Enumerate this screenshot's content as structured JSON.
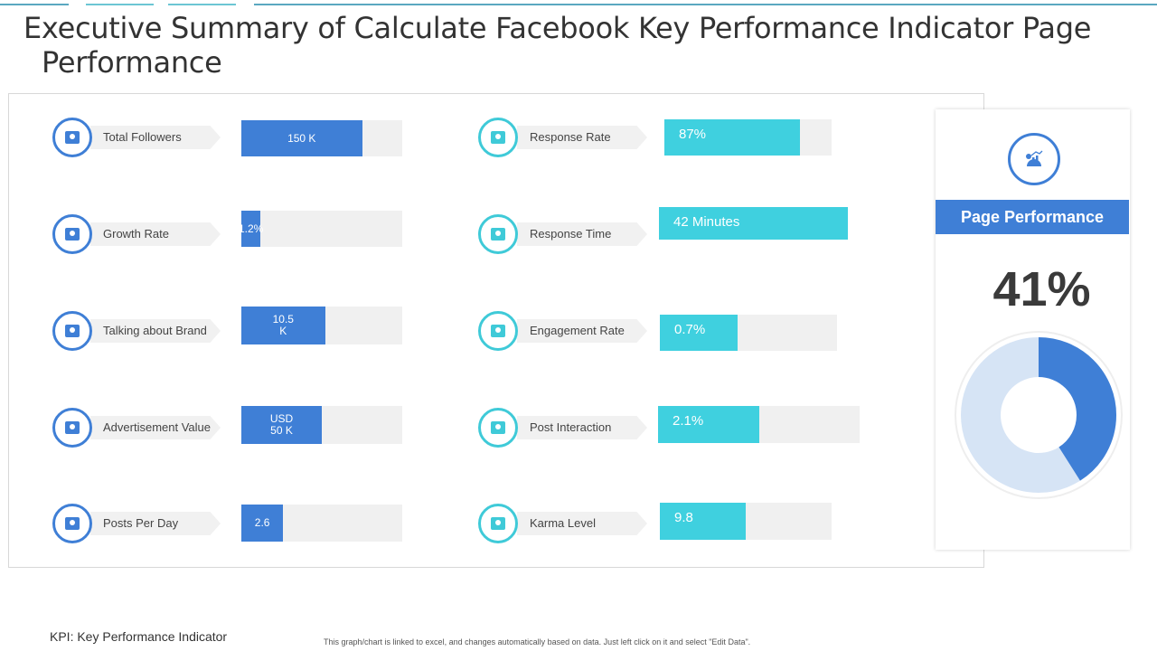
{
  "title_line1": "Executive Summary of Calculate Facebook Key Performance Indicator Page",
  "title_line2": "Performance",
  "left_metrics": [
    {
      "label": "Total Followers",
      "value": "150 K",
      "fill": 0.75,
      "icon": "followers-icon"
    },
    {
      "label": "Growth Rate",
      "value": "1.2%",
      "fill": 0.12,
      "icon": "growth-chart-icon"
    },
    {
      "label": "Talking about Brand",
      "value": "10.5\nK",
      "fill": 0.52,
      "icon": "people-chat-icon"
    },
    {
      "label": "Advertisement Value",
      "value": "USD\n50 K",
      "fill": 0.5,
      "icon": "advertisement-icon"
    },
    {
      "label": "Posts Per Day",
      "value": "2.6",
      "fill": 0.26,
      "icon": "calendar-posts-icon"
    }
  ],
  "right_metrics": [
    {
      "label": "Response Rate",
      "value": "87%",
      "fill": 0.81,
      "icon": "response-rate-icon"
    },
    {
      "label": "Response Time",
      "value": "42 Minutes",
      "fill": 1.0,
      "icon": "clock-icon"
    },
    {
      "label": "Engagement Rate",
      "value": "0.7%",
      "fill": 0.44,
      "icon": "engagement-user-icon"
    },
    {
      "label": "Post Interaction",
      "value": "2.1%",
      "fill": 0.5,
      "icon": "interaction-icon"
    },
    {
      "label": "Karma Level",
      "value": "9.8",
      "fill": 0.5,
      "icon": "karma-icon"
    }
  ],
  "panel": {
    "title": "Page Performance",
    "value": "41%",
    "percent": 41
  },
  "footer": {
    "kpi": "KPI: Key Performance Indicator",
    "note": "This graph/chart is linked to excel, and changes automatically based on data. Just left click on it and select \"Edit Data\"."
  },
  "colors": {
    "blue": "#3f7fd6",
    "cyan": "#3fd0df",
    "light": "#d6e4f5"
  }
}
